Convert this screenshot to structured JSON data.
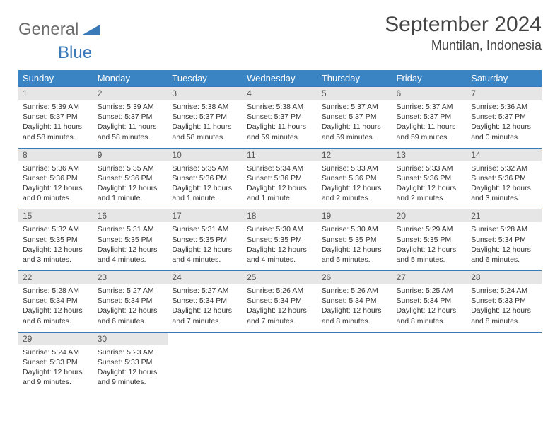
{
  "brand": {
    "part1": "General",
    "part2": "Blue"
  },
  "title": "September 2024",
  "location": "Muntilan, Indonesia",
  "colors": {
    "header_bg": "#3a84c4",
    "header_text": "#ffffff",
    "daynum_bg": "#e6e6e6",
    "border": "#3a7ab8",
    "brand_gray": "#6b6b6b",
    "brand_blue": "#3a7ab8"
  },
  "weekdays": [
    "Sunday",
    "Monday",
    "Tuesday",
    "Wednesday",
    "Thursday",
    "Friday",
    "Saturday"
  ],
  "days": [
    {
      "n": 1,
      "sunrise": "5:39 AM",
      "sunset": "5:37 PM",
      "daylight": "11 hours and 58 minutes."
    },
    {
      "n": 2,
      "sunrise": "5:39 AM",
      "sunset": "5:37 PM",
      "daylight": "11 hours and 58 minutes."
    },
    {
      "n": 3,
      "sunrise": "5:38 AM",
      "sunset": "5:37 PM",
      "daylight": "11 hours and 58 minutes."
    },
    {
      "n": 4,
      "sunrise": "5:38 AM",
      "sunset": "5:37 PM",
      "daylight": "11 hours and 59 minutes."
    },
    {
      "n": 5,
      "sunrise": "5:37 AM",
      "sunset": "5:37 PM",
      "daylight": "11 hours and 59 minutes."
    },
    {
      "n": 6,
      "sunrise": "5:37 AM",
      "sunset": "5:37 PM",
      "daylight": "11 hours and 59 minutes."
    },
    {
      "n": 7,
      "sunrise": "5:36 AM",
      "sunset": "5:37 PM",
      "daylight": "12 hours and 0 minutes."
    },
    {
      "n": 8,
      "sunrise": "5:36 AM",
      "sunset": "5:36 PM",
      "daylight": "12 hours and 0 minutes."
    },
    {
      "n": 9,
      "sunrise": "5:35 AM",
      "sunset": "5:36 PM",
      "daylight": "12 hours and 1 minute."
    },
    {
      "n": 10,
      "sunrise": "5:35 AM",
      "sunset": "5:36 PM",
      "daylight": "12 hours and 1 minute."
    },
    {
      "n": 11,
      "sunrise": "5:34 AM",
      "sunset": "5:36 PM",
      "daylight": "12 hours and 1 minute."
    },
    {
      "n": 12,
      "sunrise": "5:33 AM",
      "sunset": "5:36 PM",
      "daylight": "12 hours and 2 minutes."
    },
    {
      "n": 13,
      "sunrise": "5:33 AM",
      "sunset": "5:36 PM",
      "daylight": "12 hours and 2 minutes."
    },
    {
      "n": 14,
      "sunrise": "5:32 AM",
      "sunset": "5:36 PM",
      "daylight": "12 hours and 3 minutes."
    },
    {
      "n": 15,
      "sunrise": "5:32 AM",
      "sunset": "5:35 PM",
      "daylight": "12 hours and 3 minutes."
    },
    {
      "n": 16,
      "sunrise": "5:31 AM",
      "sunset": "5:35 PM",
      "daylight": "12 hours and 4 minutes."
    },
    {
      "n": 17,
      "sunrise": "5:31 AM",
      "sunset": "5:35 PM",
      "daylight": "12 hours and 4 minutes."
    },
    {
      "n": 18,
      "sunrise": "5:30 AM",
      "sunset": "5:35 PM",
      "daylight": "12 hours and 4 minutes."
    },
    {
      "n": 19,
      "sunrise": "5:30 AM",
      "sunset": "5:35 PM",
      "daylight": "12 hours and 5 minutes."
    },
    {
      "n": 20,
      "sunrise": "5:29 AM",
      "sunset": "5:35 PM",
      "daylight": "12 hours and 5 minutes."
    },
    {
      "n": 21,
      "sunrise": "5:28 AM",
      "sunset": "5:34 PM",
      "daylight": "12 hours and 6 minutes."
    },
    {
      "n": 22,
      "sunrise": "5:28 AM",
      "sunset": "5:34 PM",
      "daylight": "12 hours and 6 minutes."
    },
    {
      "n": 23,
      "sunrise": "5:27 AM",
      "sunset": "5:34 PM",
      "daylight": "12 hours and 6 minutes."
    },
    {
      "n": 24,
      "sunrise": "5:27 AM",
      "sunset": "5:34 PM",
      "daylight": "12 hours and 7 minutes."
    },
    {
      "n": 25,
      "sunrise": "5:26 AM",
      "sunset": "5:34 PM",
      "daylight": "12 hours and 7 minutes."
    },
    {
      "n": 26,
      "sunrise": "5:26 AM",
      "sunset": "5:34 PM",
      "daylight": "12 hours and 8 minutes."
    },
    {
      "n": 27,
      "sunrise": "5:25 AM",
      "sunset": "5:34 PM",
      "daylight": "12 hours and 8 minutes."
    },
    {
      "n": 28,
      "sunrise": "5:24 AM",
      "sunset": "5:33 PM",
      "daylight": "12 hours and 8 minutes."
    },
    {
      "n": 29,
      "sunrise": "5:24 AM",
      "sunset": "5:33 PM",
      "daylight": "12 hours and 9 minutes."
    },
    {
      "n": 30,
      "sunrise": "5:23 AM",
      "sunset": "5:33 PM",
      "daylight": "12 hours and 9 minutes."
    }
  ],
  "labels": {
    "sunrise": "Sunrise:",
    "sunset": "Sunset:",
    "daylight": "Daylight:"
  },
  "layout": {
    "first_weekday_index": 0,
    "weeks": 5
  }
}
